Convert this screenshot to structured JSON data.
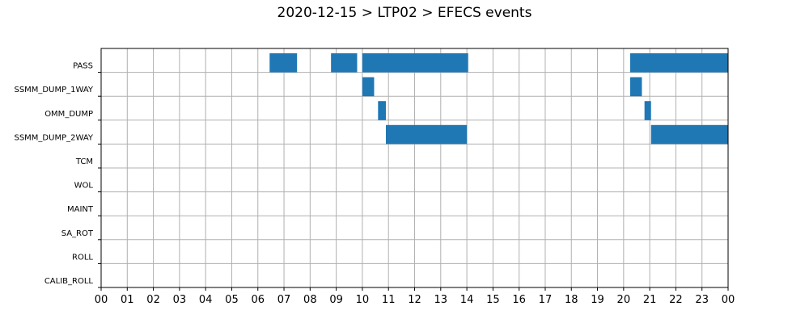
{
  "chart_data": {
    "type": "bar",
    "orientation": "horizontal-timeline",
    "title": "2020-12-15 > LTP02 > EFECS events",
    "xlabel": "",
    "ylabel": "",
    "xlim": [
      0,
      24
    ],
    "x_ticks": [
      "00",
      "01",
      "02",
      "03",
      "04",
      "05",
      "06",
      "07",
      "08",
      "09",
      "10",
      "11",
      "12",
      "13",
      "14",
      "15",
      "16",
      "17",
      "18",
      "19",
      "20",
      "21",
      "22",
      "23",
      "00"
    ],
    "grid": true,
    "bar_color": "#1f77b4",
    "categories": [
      "PASS",
      "SSMM_DUMP_1WAY",
      "OMM_DUMP",
      "SSMM_DUMP_2WAY",
      "TCM",
      "WOL",
      "MAINT",
      "SA_ROT",
      "ROLL",
      "CALIB_ROLL"
    ],
    "intervals": [
      {
        "category": "PASS",
        "start": 6.45,
        "end": 7.5
      },
      {
        "category": "PASS",
        "start": 8.8,
        "end": 9.8
      },
      {
        "category": "PASS",
        "start": 10.0,
        "end": 14.05
      },
      {
        "category": "PASS",
        "start": 20.25,
        "end": 24.0
      },
      {
        "category": "SSMM_DUMP_1WAY",
        "start": 10.0,
        "end": 10.45
      },
      {
        "category": "SSMM_DUMP_1WAY",
        "start": 20.25,
        "end": 20.7
      },
      {
        "category": "OMM_DUMP",
        "start": 10.6,
        "end": 10.9
      },
      {
        "category": "OMM_DUMP",
        "start": 20.8,
        "end": 21.05
      },
      {
        "category": "SSMM_DUMP_2WAY",
        "start": 10.9,
        "end": 14.0
      },
      {
        "category": "SSMM_DUMP_2WAY",
        "start": 21.05,
        "end": 24.0
      }
    ]
  }
}
